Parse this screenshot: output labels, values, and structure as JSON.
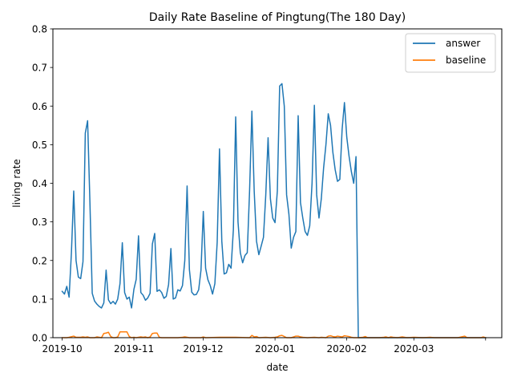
{
  "chart_data": {
    "type": "line",
    "title": "Daily Rate Baseline of Pingtung(The 180 Day)",
    "xlabel": "date",
    "ylabel": "living rate",
    "ylim": [
      0,
      0.8
    ],
    "xlim": [
      "2019-09-27",
      "2020-04-08"
    ],
    "y_ticks": [
      0.0,
      0.1,
      0.2,
      0.3,
      0.4,
      0.5,
      0.6,
      0.7,
      0.8
    ],
    "x_ticks": [
      "2019-10",
      "2019-11",
      "2019-12",
      "2020-01",
      "2020-02",
      "2020-03",
      "2020-04"
    ],
    "x_tick_labels": [
      "2019-10",
      "2019-11",
      "2019-12",
      "2020-01",
      "2020-02",
      "2020-03",
      ""
    ],
    "grid": false,
    "legend_position": "top-right",
    "series": [
      {
        "name": "answer",
        "color": "#1f77b4",
        "points": [
          [
            "2019-10-01",
            0.12
          ],
          [
            "2019-10-02",
            0.113
          ],
          [
            "2019-10-03",
            0.133
          ],
          [
            "2019-10-04",
            0.105
          ],
          [
            "2019-10-05",
            0.22
          ],
          [
            "2019-10-06",
            0.38
          ],
          [
            "2019-10-07",
            0.2
          ],
          [
            "2019-10-08",
            0.157
          ],
          [
            "2019-10-09",
            0.153
          ],
          [
            "2019-10-10",
            0.197
          ],
          [
            "2019-10-11",
            0.53
          ],
          [
            "2019-10-12",
            0.562
          ],
          [
            "2019-10-13",
            0.35
          ],
          [
            "2019-10-14",
            0.115
          ],
          [
            "2019-10-15",
            0.095
          ],
          [
            "2019-10-16",
            0.087
          ],
          [
            "2019-10-17",
            0.081
          ],
          [
            "2019-10-18",
            0.077
          ],
          [
            "2019-10-19",
            0.09
          ],
          [
            "2019-10-20",
            0.175
          ],
          [
            "2019-10-21",
            0.098
          ],
          [
            "2019-10-22",
            0.088
          ],
          [
            "2019-10-23",
            0.094
          ],
          [
            "2019-10-24",
            0.087
          ],
          [
            "2019-10-25",
            0.1
          ],
          [
            "2019-10-26",
            0.14
          ],
          [
            "2019-10-27",
            0.246
          ],
          [
            "2019-10-28",
            0.117
          ],
          [
            "2019-10-29",
            0.1
          ],
          [
            "2019-10-30",
            0.105
          ],
          [
            "2019-10-31",
            0.077
          ],
          [
            "2019-11-01",
            0.125
          ],
          [
            "2019-11-02",
            0.151
          ],
          [
            "2019-11-03",
            0.264
          ],
          [
            "2019-11-04",
            0.117
          ],
          [
            "2019-11-05",
            0.11
          ],
          [
            "2019-11-06",
            0.097
          ],
          [
            "2019-11-07",
            0.103
          ],
          [
            "2019-11-08",
            0.115
          ],
          [
            "2019-11-09",
            0.243
          ],
          [
            "2019-11-10",
            0.27
          ],
          [
            "2019-11-11",
            0.12
          ],
          [
            "2019-11-12",
            0.124
          ],
          [
            "2019-11-13",
            0.117
          ],
          [
            "2019-11-14",
            0.102
          ],
          [
            "2019-11-15",
            0.107
          ],
          [
            "2019-11-16",
            0.138
          ],
          [
            "2019-11-17",
            0.231
          ],
          [
            "2019-11-18",
            0.1
          ],
          [
            "2019-11-19",
            0.103
          ],
          [
            "2019-11-20",
            0.124
          ],
          [
            "2019-11-21",
            0.121
          ],
          [
            "2019-11-22",
            0.135
          ],
          [
            "2019-11-23",
            0.2
          ],
          [
            "2019-11-24",
            0.393
          ],
          [
            "2019-11-25",
            0.176
          ],
          [
            "2019-11-26",
            0.118
          ],
          [
            "2019-11-27",
            0.111
          ],
          [
            "2019-11-28",
            0.112
          ],
          [
            "2019-11-29",
            0.124
          ],
          [
            "2019-11-30",
            0.175
          ],
          [
            "2019-12-01",
            0.327
          ],
          [
            "2019-12-02",
            0.18
          ],
          [
            "2019-12-03",
            0.15
          ],
          [
            "2019-12-04",
            0.135
          ],
          [
            "2019-12-05",
            0.113
          ],
          [
            "2019-12-06",
            0.14
          ],
          [
            "2019-12-07",
            0.247
          ],
          [
            "2019-12-08",
            0.489
          ],
          [
            "2019-12-09",
            0.25
          ],
          [
            "2019-12-10",
            0.165
          ],
          [
            "2019-12-11",
            0.168
          ],
          [
            "2019-12-12",
            0.19
          ],
          [
            "2019-12-13",
            0.18
          ],
          [
            "2019-12-14",
            0.28
          ],
          [
            "2019-12-15",
            0.572
          ],
          [
            "2019-12-16",
            0.3
          ],
          [
            "2019-12-17",
            0.22
          ],
          [
            "2019-12-18",
            0.194
          ],
          [
            "2019-12-19",
            0.213
          ],
          [
            "2019-12-20",
            0.22
          ],
          [
            "2019-12-21",
            0.38
          ],
          [
            "2019-12-22",
            0.587
          ],
          [
            "2019-12-23",
            0.38
          ],
          [
            "2019-12-24",
            0.25
          ],
          [
            "2019-12-25",
            0.215
          ],
          [
            "2019-12-26",
            0.237
          ],
          [
            "2019-12-27",
            0.26
          ],
          [
            "2019-12-28",
            0.37
          ],
          [
            "2019-12-29",
            0.518
          ],
          [
            "2019-12-30",
            0.36
          ],
          [
            "2019-12-31",
            0.31
          ],
          [
            "2020-01-01",
            0.298
          ],
          [
            "2020-01-02",
            0.38
          ],
          [
            "2020-01-03",
            0.652
          ],
          [
            "2020-01-04",
            0.658
          ],
          [
            "2020-01-05",
            0.6
          ],
          [
            "2020-01-06",
            0.37
          ],
          [
            "2020-01-07",
            0.32
          ],
          [
            "2020-01-08",
            0.232
          ],
          [
            "2020-01-09",
            0.26
          ],
          [
            "2020-01-10",
            0.275
          ],
          [
            "2020-01-11",
            0.575
          ],
          [
            "2020-01-12",
            0.35
          ],
          [
            "2020-01-13",
            0.31
          ],
          [
            "2020-01-14",
            0.275
          ],
          [
            "2020-01-15",
            0.265
          ],
          [
            "2020-01-16",
            0.29
          ],
          [
            "2020-01-17",
            0.4
          ],
          [
            "2020-01-18",
            0.602
          ],
          [
            "2020-01-19",
            0.37
          ],
          [
            "2020-01-20",
            0.31
          ],
          [
            "2020-01-21",
            0.36
          ],
          [
            "2020-01-22",
            0.44
          ],
          [
            "2020-01-23",
            0.5
          ],
          [
            "2020-01-24",
            0.58
          ],
          [
            "2020-01-25",
            0.55
          ],
          [
            "2020-01-26",
            0.48
          ],
          [
            "2020-01-27",
            0.435
          ],
          [
            "2020-01-28",
            0.405
          ],
          [
            "2020-01-29",
            0.41
          ],
          [
            "2020-01-30",
            0.54
          ],
          [
            "2020-01-31",
            0.609
          ],
          [
            "2020-02-01",
            0.52
          ],
          [
            "2020-02-02",
            0.47
          ],
          [
            "2020-02-03",
            0.43
          ],
          [
            "2020-02-04",
            0.4
          ],
          [
            "2020-02-05",
            0.469
          ],
          [
            "2020-02-06",
            0.0
          ],
          [
            "2020-02-07",
            0.0
          ],
          [
            "2020-02-10",
            0.0
          ],
          [
            "2020-02-15",
            0.0
          ],
          [
            "2020-02-20",
            0.0
          ],
          [
            "2020-02-25",
            0.0
          ],
          [
            "2020-03-01",
            0.0
          ],
          [
            "2020-03-10",
            0.0
          ],
          [
            "2020-03-20",
            0.0
          ],
          [
            "2020-03-25",
            0.0
          ],
          [
            "2020-03-30",
            0.0
          ],
          [
            "2020-04-01",
            0.0
          ]
        ]
      },
      {
        "name": "baseline",
        "color": "#ff7f0e",
        "points": [
          [
            "2019-10-01",
            0.0
          ],
          [
            "2019-10-03",
            0.0
          ],
          [
            "2019-10-04",
            0.001
          ],
          [
            "2019-10-06",
            0.004
          ],
          [
            "2019-10-07",
            0.001
          ],
          [
            "2019-10-09",
            0.001
          ],
          [
            "2019-10-10",
            0.002
          ],
          [
            "2019-10-11",
            0.001
          ],
          [
            "2019-10-12",
            0.002
          ],
          [
            "2019-10-13",
            0.0
          ],
          [
            "2019-10-15",
            0.0
          ],
          [
            "2019-10-16",
            0.002
          ],
          [
            "2019-10-17",
            0.001
          ],
          [
            "2019-10-18",
            0.0
          ],
          [
            "2019-10-19",
            0.011
          ],
          [
            "2019-10-20",
            0.012
          ],
          [
            "2019-10-21",
            0.014
          ],
          [
            "2019-10-22",
            0.003
          ],
          [
            "2019-10-23",
            0.0
          ],
          [
            "2019-10-24",
            0.0
          ],
          [
            "2019-10-25",
            0.002
          ],
          [
            "2019-10-26",
            0.015
          ],
          [
            "2019-10-27",
            0.015
          ],
          [
            "2019-10-28",
            0.015
          ],
          [
            "2019-10-29",
            0.015
          ],
          [
            "2019-10-30",
            0.003
          ],
          [
            "2019-10-31",
            0.0
          ],
          [
            "2019-11-01",
            0.001
          ],
          [
            "2019-11-02",
            0.0
          ],
          [
            "2019-11-03",
            0.001
          ],
          [
            "2019-11-04",
            0.002
          ],
          [
            "2019-11-05",
            0.001
          ],
          [
            "2019-11-06",
            0.002
          ],
          [
            "2019-11-07",
            0.0
          ],
          [
            "2019-11-08",
            0.002
          ],
          [
            "2019-11-09",
            0.011
          ],
          [
            "2019-11-10",
            0.012
          ],
          [
            "2019-11-11",
            0.012
          ],
          [
            "2019-11-12",
            0.001
          ],
          [
            "2019-11-13",
            0.0
          ],
          [
            "2019-11-20",
            0.0
          ],
          [
            "2019-11-22",
            0.001
          ],
          [
            "2019-11-23",
            0.002
          ],
          [
            "2019-11-24",
            0.001
          ],
          [
            "2019-11-25",
            0.0
          ],
          [
            "2019-11-30",
            0.0
          ],
          [
            "2019-12-01",
            0.002
          ],
          [
            "2019-12-02",
            0.0
          ],
          [
            "2019-12-08",
            0.001
          ],
          [
            "2019-12-15",
            0.001
          ],
          [
            "2019-12-21",
            0.0
          ],
          [
            "2019-12-22",
            0.006
          ],
          [
            "2019-12-23",
            0.002
          ],
          [
            "2019-12-24",
            0.003
          ],
          [
            "2019-12-25",
            0.0
          ],
          [
            "2019-12-28",
            0.001
          ],
          [
            "2019-12-30",
            0.0
          ],
          [
            "2020-01-01",
            0.001
          ],
          [
            "2020-01-02",
            0.002
          ],
          [
            "2020-01-03",
            0.005
          ],
          [
            "2020-01-04",
            0.006
          ],
          [
            "2020-01-05",
            0.003
          ],
          [
            "2020-01-06",
            0.0
          ],
          [
            "2020-01-08",
            0.0
          ],
          [
            "2020-01-10",
            0.004
          ],
          [
            "2020-01-11",
            0.004
          ],
          [
            "2020-01-12",
            0.002
          ],
          [
            "2020-01-13",
            0.001
          ],
          [
            "2020-01-15",
            0.0
          ],
          [
            "2020-01-18",
            0.001
          ],
          [
            "2020-01-20",
            0.0
          ],
          [
            "2020-01-21",
            0.001
          ],
          [
            "2020-01-23",
            0.0
          ],
          [
            "2020-01-24",
            0.004
          ],
          [
            "2020-01-25",
            0.005
          ],
          [
            "2020-01-26",
            0.003
          ],
          [
            "2020-01-27",
            0.002
          ],
          [
            "2020-01-28",
            0.004
          ],
          [
            "2020-01-29",
            0.003
          ],
          [
            "2020-01-30",
            0.002
          ],
          [
            "2020-01-31",
            0.005
          ],
          [
            "2020-02-01",
            0.004
          ],
          [
            "2020-02-02",
            0.003
          ],
          [
            "2020-02-03",
            0.001
          ],
          [
            "2020-02-04",
            0.0
          ],
          [
            "2020-02-06",
            0.0
          ],
          [
            "2020-02-08",
            0.001
          ],
          [
            "2020-02-09",
            0.003
          ],
          [
            "2020-02-10",
            0.0
          ],
          [
            "2020-02-15",
            0.0
          ],
          [
            "2020-02-17",
            0.001
          ],
          [
            "2020-02-18",
            0.002
          ],
          [
            "2020-02-19",
            0.0
          ],
          [
            "2020-02-20",
            0.002
          ],
          [
            "2020-02-21",
            0.001
          ],
          [
            "2020-02-23",
            0.0
          ],
          [
            "2020-02-25",
            0.002
          ],
          [
            "2020-02-27",
            0.0
          ],
          [
            "2020-03-01",
            0.001
          ],
          [
            "2020-03-05",
            0.0
          ],
          [
            "2020-03-08",
            0.001
          ],
          [
            "2020-03-10",
            0.0
          ],
          [
            "2020-03-20",
            0.0
          ],
          [
            "2020-03-23",
            0.004
          ],
          [
            "2020-03-24",
            0.0
          ],
          [
            "2020-03-30",
            0.0
          ],
          [
            "2020-03-31",
            0.002
          ],
          [
            "2020-04-01",
            0.0
          ]
        ]
      }
    ]
  }
}
